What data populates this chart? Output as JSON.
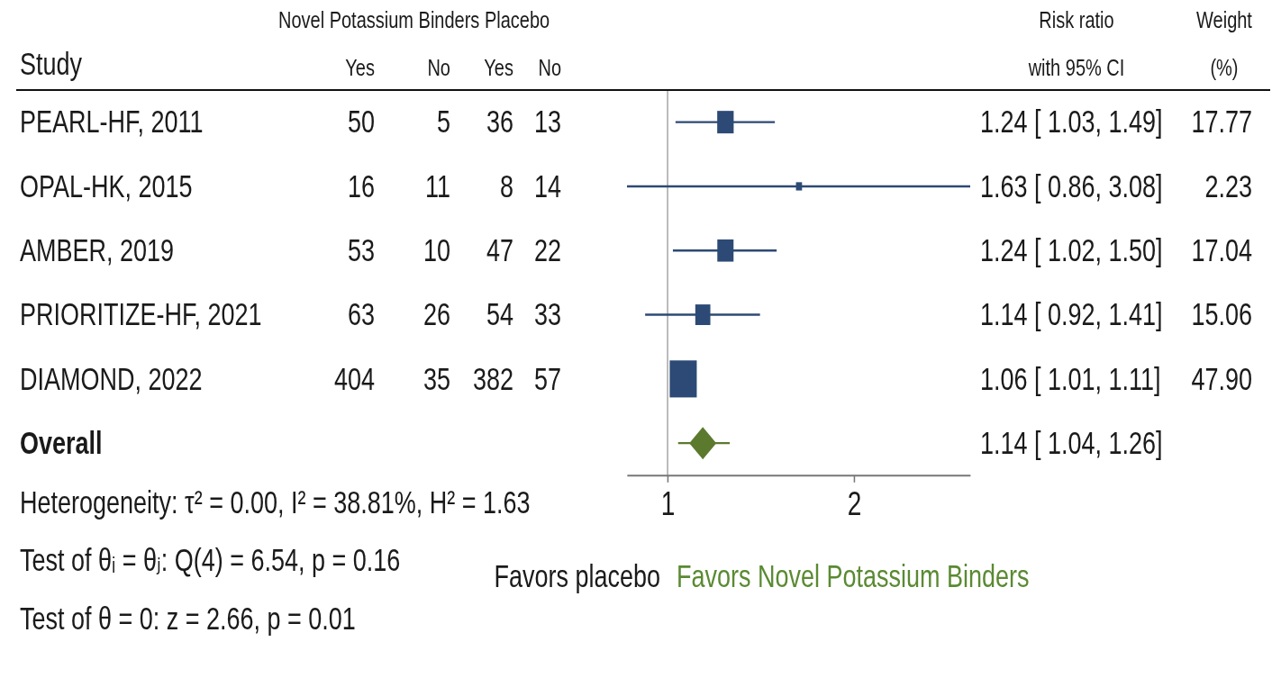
{
  "chart_data": {
    "type": "scatter",
    "orientation": "horizontal",
    "categories": [
      null,
      null,
      null,
      null,
      null,
      null
    ],
    "tick_labels": "x",
    "series": [
      {
        "type": "bubble",
        "marker": "square",
        "color": "#2c4a75",
        "values": [
          1.24,
          1.63,
          1.24,
          1.14,
          1.06,
          null
        ],
        "errors": [
          [
            1.03,
            1.49
          ],
          [
            0.86,
            3.08
          ],
          [
            1.02,
            1.5
          ],
          [
            0.92,
            1.41
          ],
          [
            1.01,
            1.11
          ],
          null
        ],
        "sizes": [
          0.37,
          0.05,
          0.36,
          0.31,
          1,
          null
        ],
        "value_labels": [
          "1.24 [ 1.03, 1.49]",
          "1.63 [ 0.86, 3.08]",
          "1.24 [ 1.02, 1.50]",
          "1.14 [ 0.92, 1.41]",
          "1.06 [ 1.01, 1.11]",
          null
        ]
      },
      {
        "type": "scatter",
        "marker": "diamond",
        "color": "#5b7a2e",
        "values": [
          null,
          null,
          null,
          null,
          null,
          1.14
        ],
        "errors": [
          null,
          null,
          null,
          null,
          null,
          [
            1.04,
            1.26
          ]
        ]
      }
    ],
    "xlim": [
      0.86,
      3.08
    ],
    "xticks": [
      {
        "value": 1,
        "label": "1"
      },
      {
        "value": 2,
        "label": "2"
      }
    ],
    "log": "x",
    "ref_lines": [
      {
        "axis": "x",
        "value": 1,
        "color": "#8a8a8a"
      }
    ],
    "annotations": [
      "Study",
      "Novel Potassium Binders Placebo",
      "Yes",
      "No",
      "Yes",
      "No",
      "Risk ratio",
      "with 95% CI",
      "Weight",
      "(%)",
      "PEARL-HF, 2011",
      "50",
      "5",
      "36",
      "13",
      "OPAL-HK, 2015",
      "16",
      "11",
      "8",
      "14",
      "AMBER, 2019",
      "53",
      "10",
      "47",
      "22",
      "PRIORITIZE-HF, 2021",
      "63",
      "26",
      "54",
      "33",
      "DIAMOND, 2022",
      "404",
      "35",
      "382",
      "57",
      "Overall",
      "1.14 [ 1.04, 1.26]",
      "17.77",
      "2.23",
      "17.04",
      "15.06",
      "47.90",
      "Heterogeneity: τ² = 0.00, I² = 38.81%, H² = 1.63",
      "Test of θᵢ = θⱼ: Q(4) = 6.54, p = 0.16",
      "Test of θ = 0: z = 2.66, p = 0.01",
      "Favors placebo",
      "Favors Novel Potassium Binders"
    ]
  }
}
